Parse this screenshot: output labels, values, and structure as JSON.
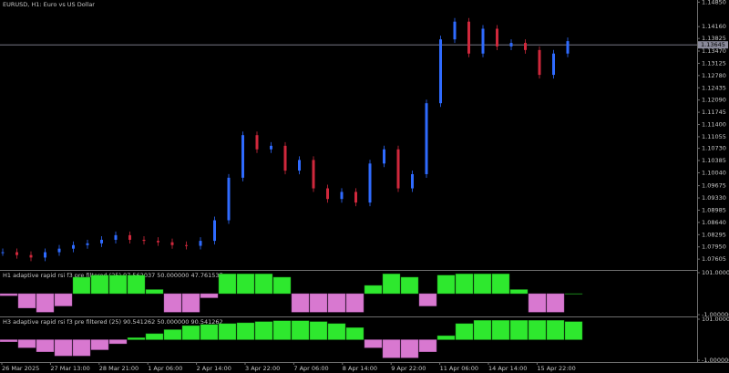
{
  "window_title": "EURUSD, H1:  Euro vs US Dollar",
  "price_chart": {
    "closes": [
      1.078,
      1.0772,
      1.0765,
      1.078,
      1.079,
      1.08,
      1.0805,
      1.0815,
      1.0828,
      1.0815,
      1.0812,
      1.0808,
      1.08,
      1.0798,
      1.0812,
      1.087,
      1.099,
      1.111,
      1.107,
      1.108,
      1.101,
      1.104,
      1.096,
      1.093,
      1.095,
      1.092,
      1.103,
      1.107,
      1.096,
      1.1,
      1.12,
      1.138,
      1.143,
      1.134,
      1.141,
      1.136,
      1.137,
      1.135,
      1.128,
      1.134,
      1.1375
    ],
    "ylim": [
      1.073,
      1.1491
    ],
    "yticks": [
      {
        "value": 1.1485,
        "label": "1.14850"
      },
      {
        "value": 1.1416,
        "label": "1.14160"
      },
      {
        "value": 1.13825,
        "label": "1.13825"
      },
      {
        "value": 1.1347,
        "label": "1.13470"
      },
      {
        "value": 1.13125,
        "label": "1.13125"
      },
      {
        "value": 1.1278,
        "label": "1.12780"
      },
      {
        "value": 1.12435,
        "label": "1.12435"
      },
      {
        "value": 1.1209,
        "label": "1.12090"
      },
      {
        "value": 1.11745,
        "label": "1.11745"
      },
      {
        "value": 1.114,
        "label": "1.11400"
      },
      {
        "value": 1.11055,
        "label": "1.11055"
      },
      {
        "value": 1.1073,
        "label": "1.10730"
      },
      {
        "value": 1.10385,
        "label": "1.10385"
      },
      {
        "value": 1.1004,
        "label": "1.10040"
      },
      {
        "value": 1.09675,
        "label": "1.09675"
      },
      {
        "value": 1.0933,
        "label": "1.09330"
      },
      {
        "value": 1.08985,
        "label": "1.08985"
      },
      {
        "value": 1.0864,
        "label": "1.08640"
      },
      {
        "value": 1.08295,
        "label": "1.08295"
      },
      {
        "value": 1.0795,
        "label": "1.07950"
      },
      {
        "value": 1.07605,
        "label": "1.07605"
      }
    ],
    "current_price": {
      "value": 1.13645,
      "label": "1.13645"
    },
    "up_color": "#2f6bff",
    "down_color": "#d0283c"
  },
  "indicators": [
    {
      "label": "H1 adaptive rapid rsi f3 pre filtered (25) 97.562037 50.000000 47.761537",
      "values": [
        45,
        15,
        5,
        20,
        90,
        95,
        95,
        95,
        60,
        5,
        5,
        40,
        98,
        98,
        98,
        90,
        5,
        5,
        5,
        5,
        70,
        98,
        90,
        20,
        95,
        98,
        98,
        98,
        60,
        5,
        5,
        50
      ],
      "ylim": [
        -1,
        101
      ],
      "yticks": [
        {
          "value": 101,
          "label": "101.000000"
        },
        {
          "value": -1,
          "label": "-1.000000"
        }
      ],
      "midline": 50,
      "up_color": "#2ee82e",
      "down_color": "#d878d0"
    },
    {
      "label": "H3 adaptive rapid rsi f3 pre filtered (25) 90.541262 50.000000 90.541262",
      "values": [
        45,
        30,
        20,
        10,
        10,
        25,
        40,
        55,
        65,
        75,
        85,
        88,
        90,
        92,
        95,
        97,
        97,
        95,
        90,
        80,
        30,
        5,
        5,
        20,
        60,
        90,
        98,
        98,
        98,
        98,
        98,
        95
      ],
      "ylim": [
        -1,
        101
      ],
      "yticks": [
        {
          "value": 101,
          "label": "101.000000"
        },
        {
          "value": -1,
          "label": "-1.000000"
        }
      ],
      "midline": 50,
      "up_color": "#2ee82e",
      "down_color": "#d878d0"
    }
  ],
  "time_axis": [
    "26 Mar 2025",
    "27 Mar 13:00",
    "28 Mar 21:00",
    "1 Apr 06:00",
    "2 Apr 14:00",
    "3 Apr 22:00",
    "7 Apr 06:00",
    "8 Apr 14:00",
    "9 Apr 22:00",
    "11 Apr 06:00",
    "14 Apr 14:00",
    "15 Apr 22:00"
  ]
}
